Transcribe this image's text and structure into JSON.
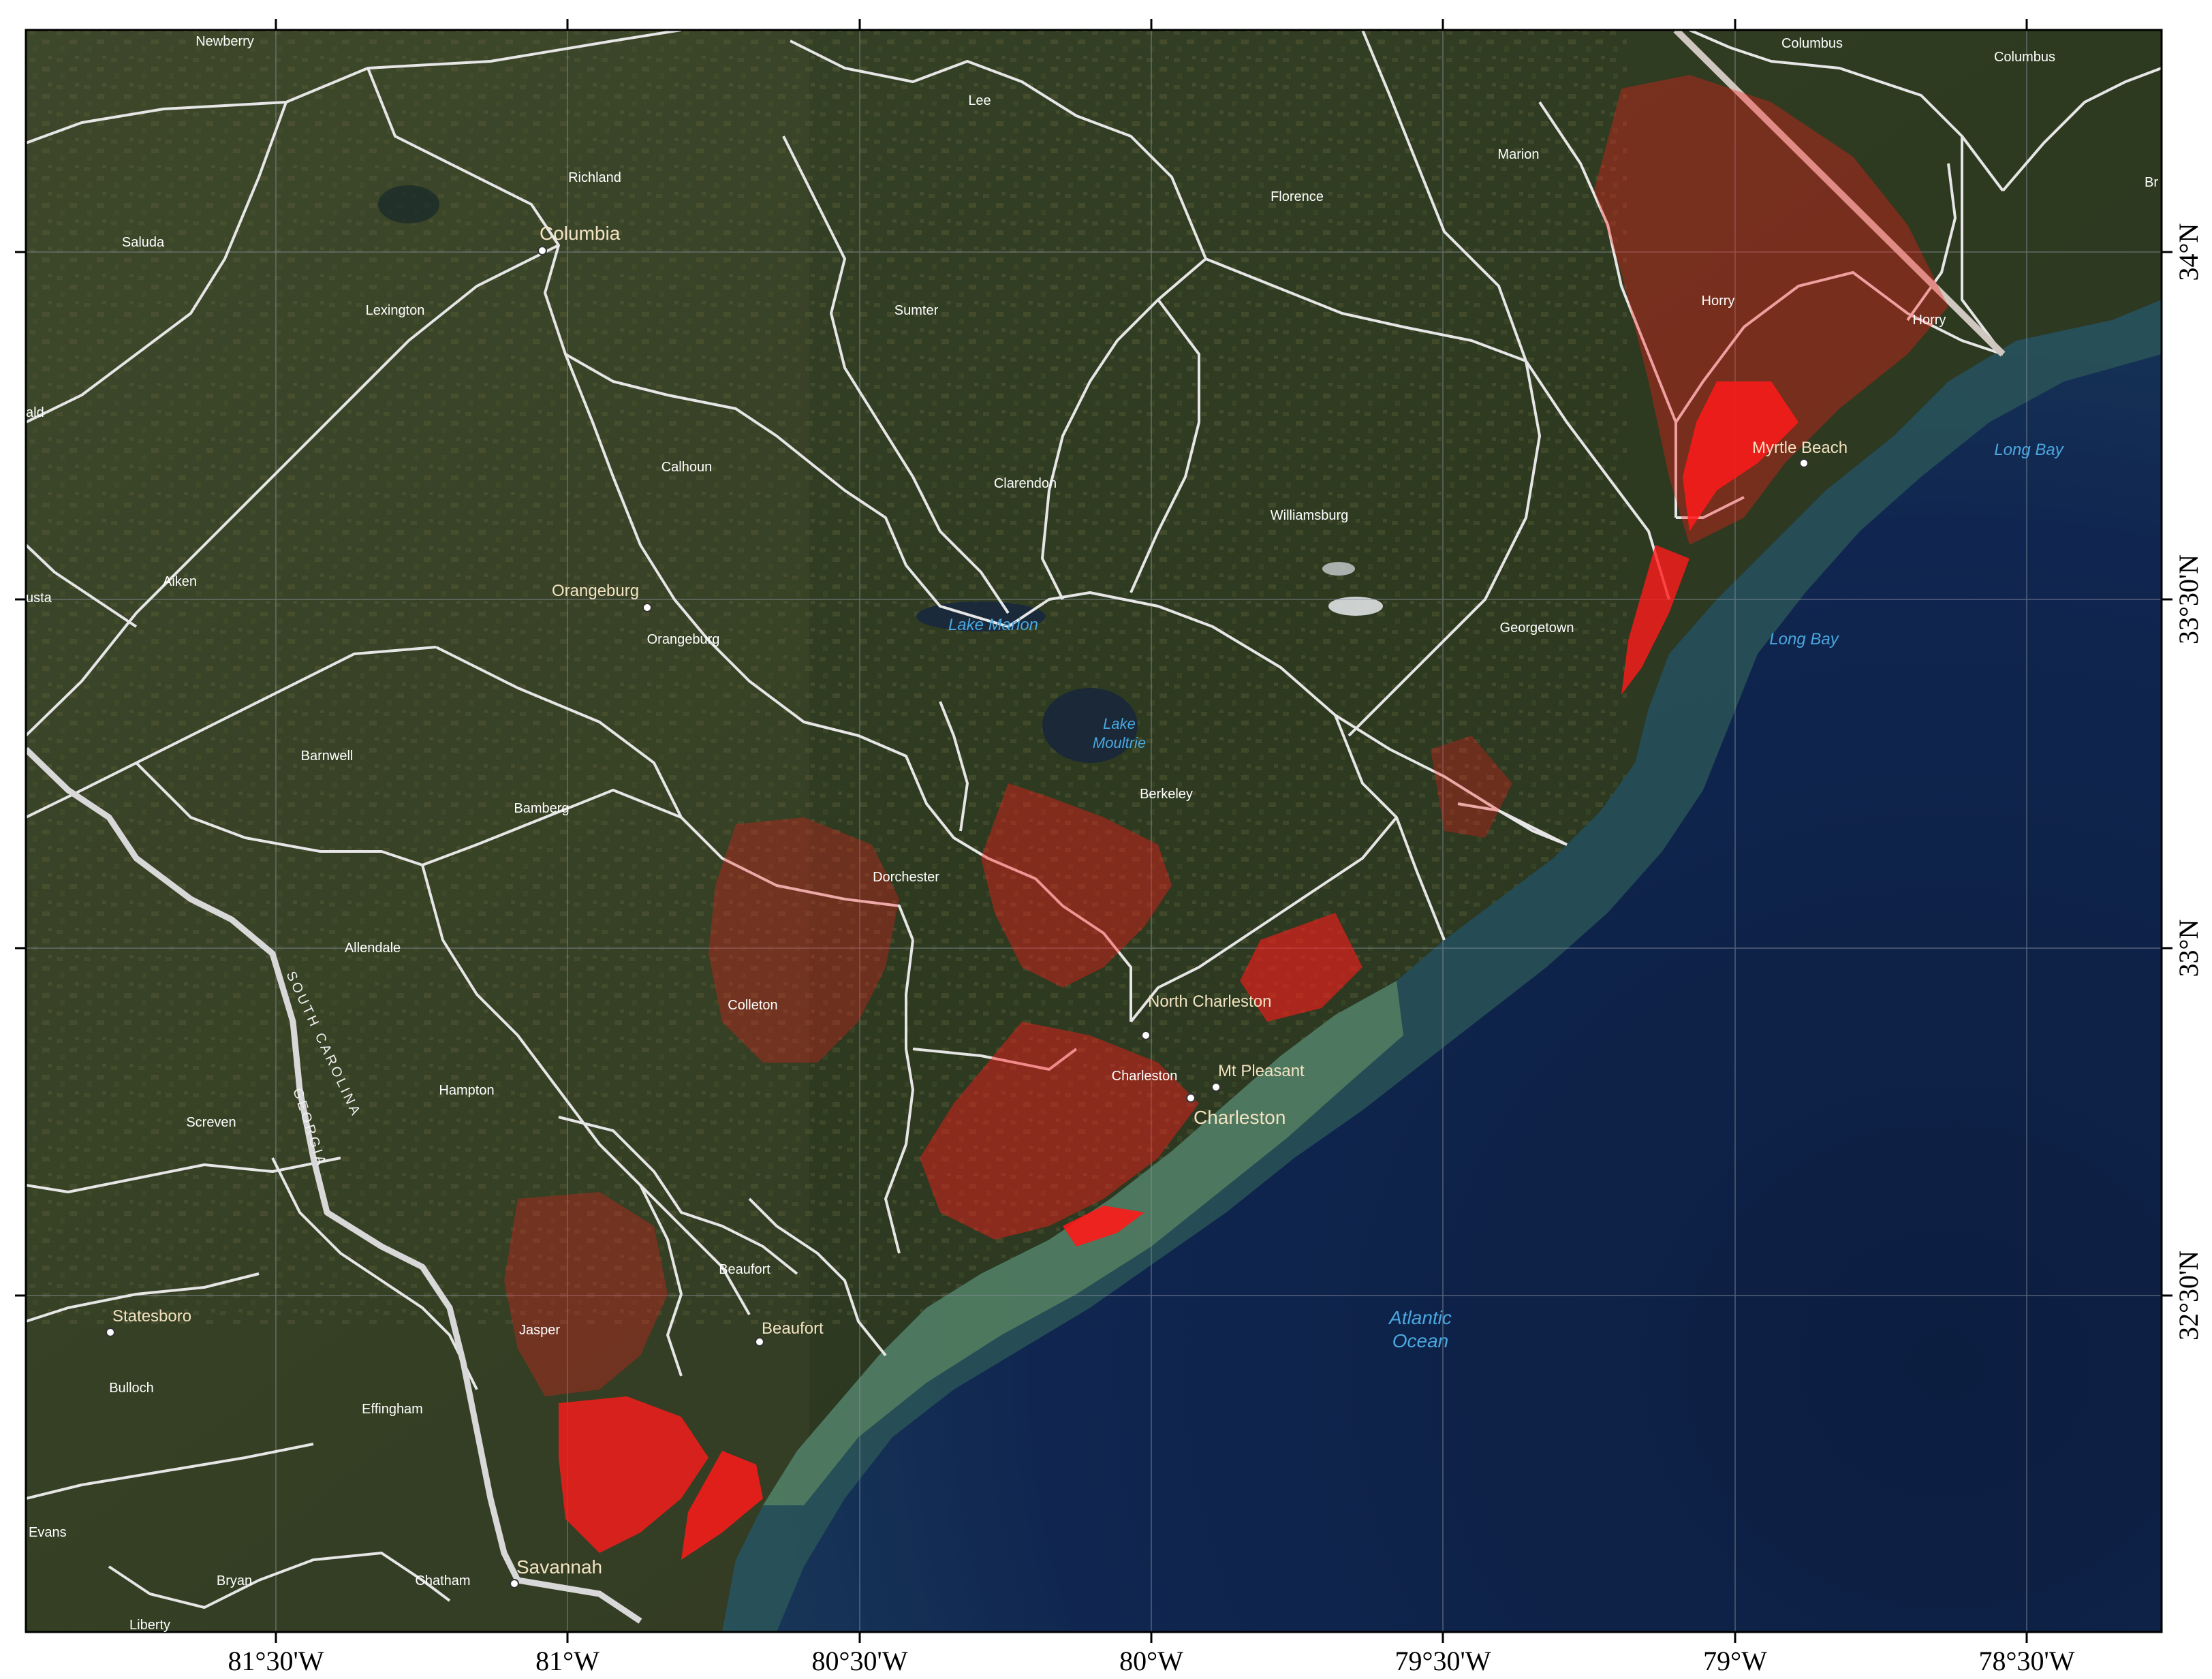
{
  "map": {
    "longitude_ticks": [
      "81°30'W",
      "81°W",
      "80°30'W",
      "80°W",
      "79°30'W",
      "79°W",
      "78°30'W"
    ],
    "latitude_ticks": [
      "34°N",
      "33°30'N",
      "33°N",
      "32°30'N"
    ],
    "counties": [
      "Newberry",
      "Richland",
      "Saluda",
      "Lexington",
      "Calhoun",
      "Aiken",
      "Orangeburg",
      "Barnwell",
      "Bamberg",
      "Allendale",
      "Hampton",
      "Colleton",
      "Dorchester",
      "Berkeley",
      "Charleston",
      "Beaufort",
      "Jasper",
      "Screven",
      "Bulloch",
      "Effingham",
      "Bryan",
      "Chatham",
      "Lee",
      "Florence",
      "Sumter",
      "Clarendon",
      "Williamsburg",
      "Georgetown",
      "Horry",
      "Marion",
      "Columbus"
    ],
    "cities": [
      "Columbia",
      "Orangeburg",
      "North Charleston",
      "Charleston",
      "Mt Pleasant",
      "Myrtle Beach",
      "Beaufort",
      "Savannah",
      "Statesboro"
    ],
    "water_bodies": [
      "Lake Marion",
      "Lake Moultrie",
      "Long Bay",
      "Long Bay",
      "Atlantic Ocean"
    ],
    "partial_labels": [
      "ald",
      "usta",
      "Br",
      "Evans",
      "Liberty",
      "Columbus"
    ],
    "state_boundary_labels": [
      "SOUTH CAROLINA",
      "GEORGIA"
    ],
    "colors": {
      "land": "#2e3a22",
      "land_light": "#4a5532",
      "ocean": "#0f2449",
      "ocean_shelf": "#3d7a6a",
      "coastal_sediment": "#5e8a62",
      "boundary": "#e8e8e8",
      "highlight": "#ff1a1a",
      "county_label": "#ffffff",
      "city_label": "#f3e3c2",
      "water_label": "#4aa8e0",
      "tick_label": "#000000"
    }
  }
}
